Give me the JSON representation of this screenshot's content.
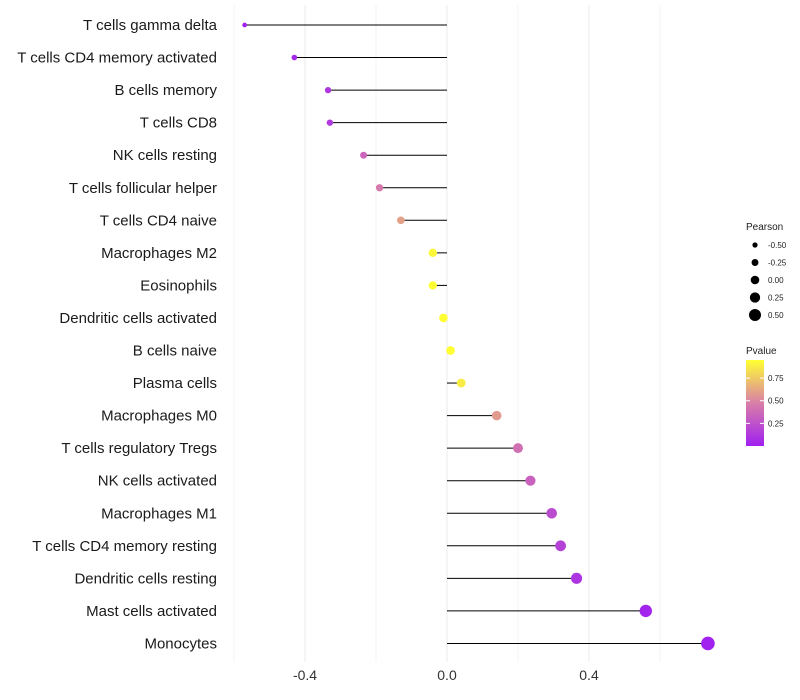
{
  "chart_data": {
    "type": "lollipop",
    "x_axis": {
      "ticks": [
        -0.4,
        0.0,
        0.4
      ],
      "tick_labels": [
        "-0.4",
        "0.0",
        "0.4"
      ],
      "xlim": [
        -0.6,
        0.74
      ]
    },
    "baseline": 0.0,
    "rows": [
      {
        "label": "T cells gamma delta",
        "value": -0.57,
        "pvalue": 0.01
      },
      {
        "label": "T cells CD4 memory activated",
        "value": -0.43,
        "pvalue": 0.05
      },
      {
        "label": "B cells memory",
        "value": -0.335,
        "pvalue": 0.12
      },
      {
        "label": "T cells CD8",
        "value": -0.33,
        "pvalue": 0.13
      },
      {
        "label": "NK cells resting",
        "value": -0.235,
        "pvalue": 0.35
      },
      {
        "label": "T cells follicular helper",
        "value": -0.19,
        "pvalue": 0.45
      },
      {
        "label": "T cells CD4 naive",
        "value": -0.13,
        "pvalue": 0.6
      },
      {
        "label": "Macrophages M2",
        "value": -0.04,
        "pvalue": 0.92
      },
      {
        "label": "Eosinophils",
        "value": -0.04,
        "pvalue": 0.95
      },
      {
        "label": "Dendritic cells activated",
        "value": -0.01,
        "pvalue": 0.97
      },
      {
        "label": "B cells naive",
        "value": 0.01,
        "pvalue": 0.96
      },
      {
        "label": "Plasma cells",
        "value": 0.04,
        "pvalue": 0.88
      },
      {
        "label": "Macrophages M0",
        "value": 0.14,
        "pvalue": 0.58
      },
      {
        "label": "T cells regulatory  Tregs ",
        "value": 0.2,
        "pvalue": 0.4
      },
      {
        "label": "NK cells activated",
        "value": 0.235,
        "pvalue": 0.33
      },
      {
        "label": "Macrophages M1",
        "value": 0.295,
        "pvalue": 0.22
      },
      {
        "label": "T cells CD4 memory resting",
        "value": 0.32,
        "pvalue": 0.17
      },
      {
        "label": "Dendritic cells resting",
        "value": 0.365,
        "pvalue": 0.1
      },
      {
        "label": "Mast cells activated",
        "value": 0.56,
        "pvalue": 0.02
      },
      {
        "label": "Monocytes",
        "value": 0.735,
        "pvalue": 0.005
      }
    ],
    "legend_size": {
      "title": "Pearson",
      "values": [
        -0.5,
        -0.25,
        0.0,
        0.25,
        0.5
      ],
      "labels": [
        "-0.50",
        "-0.25",
        "0.00",
        "0.25",
        "0.50"
      ]
    },
    "legend_color": {
      "title": "Pvalue",
      "ticks": [
        0.25,
        0.5,
        0.75
      ],
      "tick_labels": [
        "0.25",
        "0.50",
        "0.75"
      ],
      "range": [
        0.0,
        0.95
      ],
      "low_color": "#a020f0",
      "high_color": "#ffff33"
    },
    "colors": {
      "segment": "#000000",
      "grid": "#ebebeb"
    }
  }
}
